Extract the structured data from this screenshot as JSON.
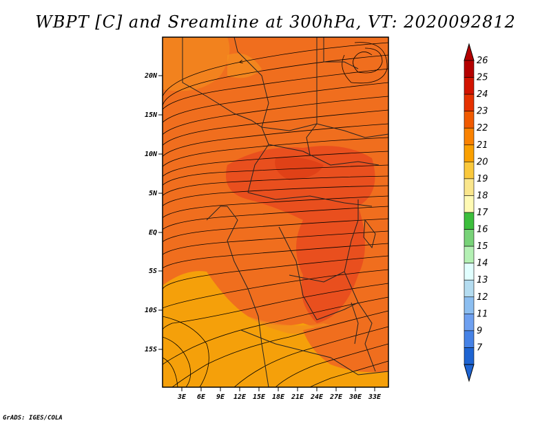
{
  "title": "WBPT [C] and Sreamline at 300hPa, VT: 2020092812",
  "credit": "GrADS: IGES/COLA",
  "map": {
    "lat_labels": [
      "20N",
      "15N",
      "10N",
      "5N",
      "EQ",
      "5S",
      "10S",
      "15S"
    ],
    "lon_labels": [
      "3E",
      "6E",
      "9E",
      "12E",
      "15E",
      "18E",
      "21E",
      "24E",
      "27E",
      "30E",
      "33E"
    ],
    "field": "wet-bulb potential temperature",
    "overlay": "streamlines"
  },
  "colorbar": {
    "labels": [
      "26",
      "25",
      "24",
      "23",
      "22",
      "21",
      "20",
      "19",
      "18",
      "17",
      "16",
      "15",
      "14",
      "13",
      "12",
      "11",
      "9",
      "7"
    ],
    "colors": [
      "#b40000",
      "#d21400",
      "#e63200",
      "#f05a00",
      "#fa8200",
      "#faa000",
      "#fac83c",
      "#fae68c",
      "#fffab4",
      "#3cbe3c",
      "#78d278",
      "#b4f0b4",
      "#e1ffff",
      "#b4dcf0",
      "#8cbef0",
      "#6ea0f0",
      "#4682e6",
      "#1e64d2"
    ]
  },
  "colors": {
    "warm_core": "#e8461e",
    "field_main": "#f0641e",
    "field_cool": "#f5a00a"
  }
}
